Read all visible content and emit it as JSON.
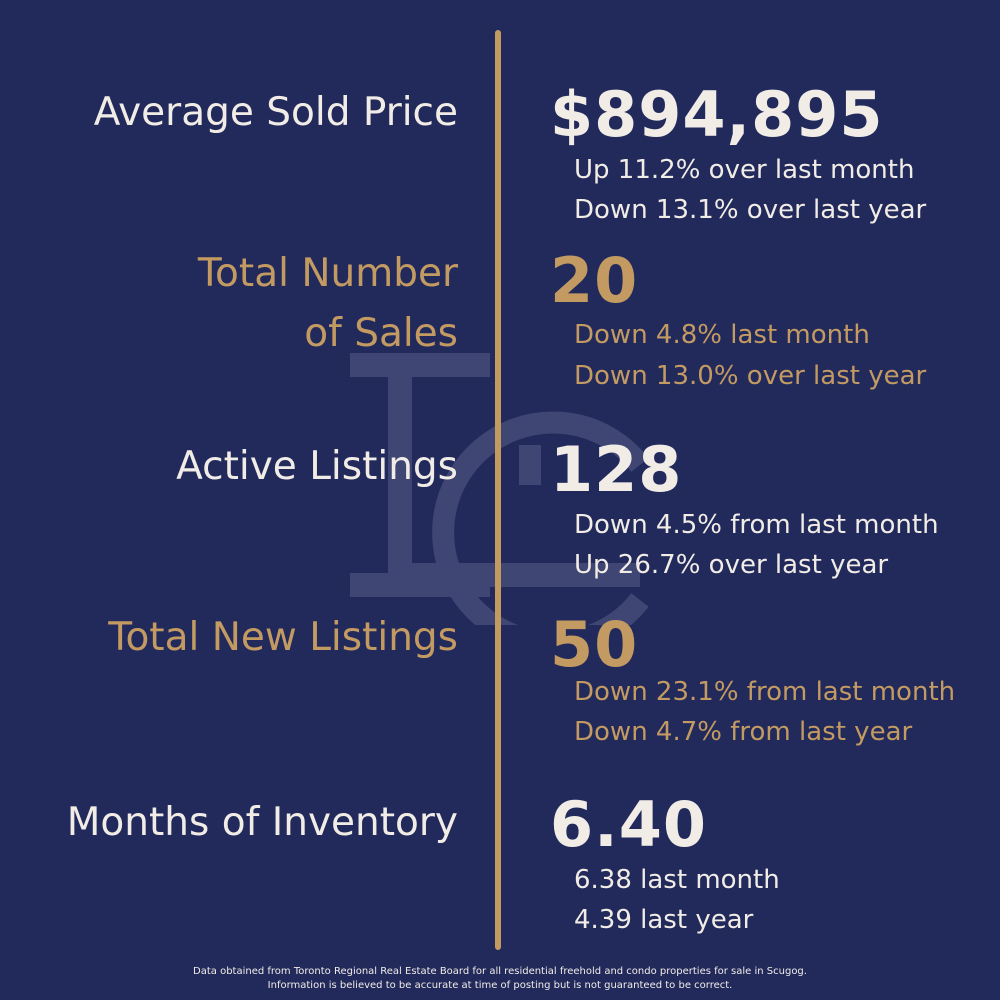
{
  "stats": [
    {
      "label_lines": [
        "Average Sold Price"
      ],
      "value": "$894,895",
      "details": [
        "Up 11.2% over last month",
        "Down 13.1% over last year"
      ],
      "tone": "light"
    },
    {
      "label_lines": [
        "Total Number",
        "of Sales"
      ],
      "value": "20",
      "details": [
        "Down 4.8% last month",
        "Down 13.0% over last year"
      ],
      "tone": "gold"
    },
    {
      "label_lines": [
        "Active Listings"
      ],
      "value": "128",
      "details": [
        "Down 4.5% from last month",
        "Up 26.7% over last year"
      ],
      "tone": "light"
    },
    {
      "label_lines": [
        "Total New Listings"
      ],
      "value": "50",
      "details": [
        "Down 23.1% from last month",
        "Down 4.7% from last year"
      ],
      "tone": "gold"
    },
    {
      "label_lines": [
        "Months of Inventory"
      ],
      "value": "6.40",
      "details": [
        "6.38 last month",
        "4.39 last year"
      ],
      "tone": "light"
    }
  ],
  "footer": {
    "line1": "Data obtained from Toronto Regional Real Estate Board for all residential freehold and condo properties for sale in Scugog.",
    "line2": "Information is believed to be accurate at time of posting but is not guaranteed to be correct."
  },
  "colors": {
    "background": "#222a5c",
    "gold": "#c39a62",
    "light": "#f1ece6"
  },
  "watermark": {
    "icon": "lc-monogram-logo-icon"
  }
}
